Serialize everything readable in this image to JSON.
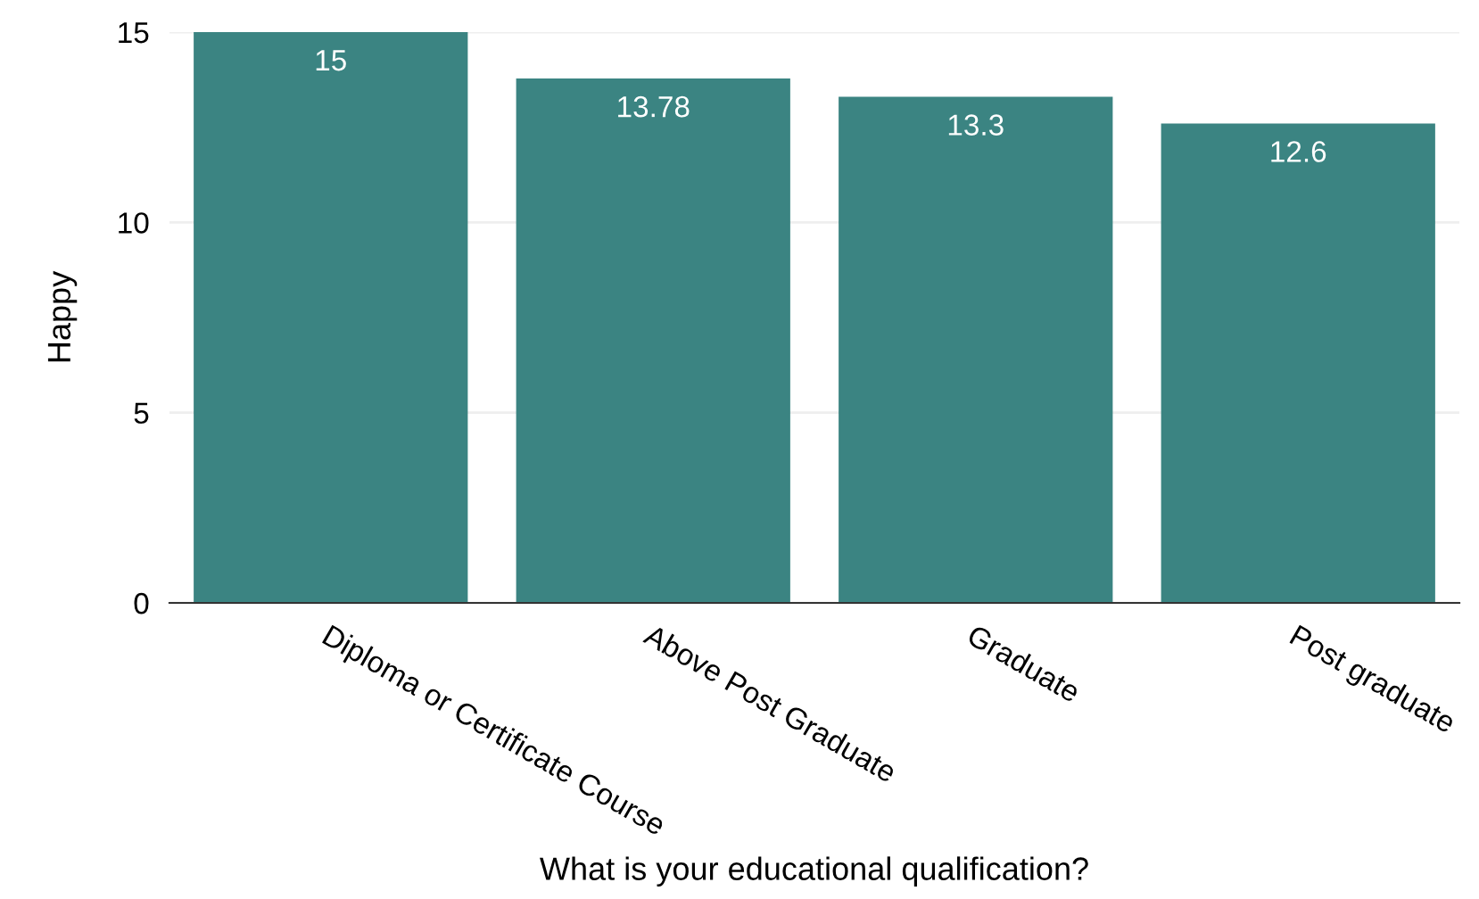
{
  "chart_data": {
    "type": "bar",
    "xlabel": "What is your educational qualification?",
    "ylabel": "Happy",
    "categories": [
      "Diploma or Certificate Course",
      "Above Post Graduate",
      "Graduate",
      "Post graduate"
    ],
    "values": [
      15,
      13.78,
      13.3,
      12.6
    ],
    "color": "#3b8482",
    "ylim": [
      0,
      15
    ],
    "yticks": [
      0,
      5,
      10,
      15
    ],
    "grid": "y",
    "data_labels": true
  }
}
